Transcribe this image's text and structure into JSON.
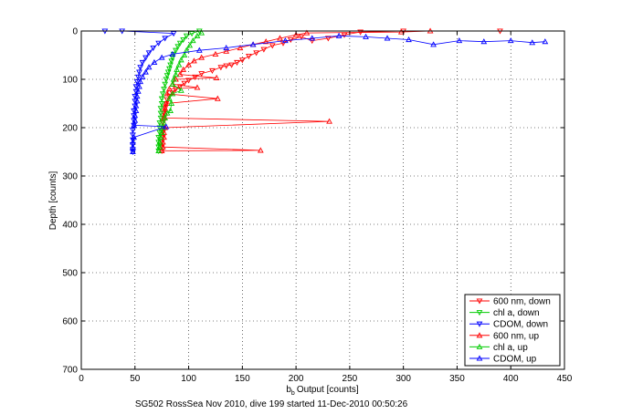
{
  "chart_data": {
    "type": "scatter",
    "title": "",
    "xlabel": "Output [counts]",
    "xlabel_prefix": "b",
    "xlabel_subscript": "b",
    "ylabel": "Depth [counts]",
    "caption": "SG502 RossSea Nov 2010, dive 199 started 11-Dec-2010 00:50:26",
    "xlim": [
      0,
      450
    ],
    "ylim": [
      0,
      700
    ],
    "y_reversed": true,
    "grid": true,
    "legend_position": "bottom-right",
    "x_ticks": [
      "0",
      "50",
      "100",
      "150",
      "200",
      "250",
      "300",
      "350",
      "400",
      "450"
    ],
    "y_ticks": [
      "0",
      "100",
      "200",
      "300",
      "400",
      "500",
      "600",
      "700"
    ],
    "series": [
      {
        "name": "600 nm, down",
        "color": "#ff0000",
        "marker": "triangle-down",
        "values": [
          [
            390,
            0
          ],
          [
            300,
            0
          ],
          [
            260,
            2
          ],
          [
            245,
            8
          ],
          [
            230,
            15
          ],
          [
            215,
            20
          ],
          [
            205,
            12
          ],
          [
            195,
            18
          ],
          [
            188,
            25
          ],
          [
            178,
            30
          ],
          [
            170,
            38
          ],
          [
            163,
            45
          ],
          [
            156,
            52
          ],
          [
            150,
            60
          ],
          [
            145,
            65
          ],
          [
            140,
            70
          ],
          [
            135,
            72
          ],
          [
            130,
            75
          ],
          [
            122,
            82
          ],
          [
            112,
            88
          ],
          [
            106,
            95
          ],
          [
            100,
            102
          ],
          [
            96,
            108
          ],
          [
            92,
            115
          ],
          [
            88,
            120
          ],
          [
            85,
            128
          ],
          [
            82,
            135
          ],
          [
            80,
            142
          ],
          [
            79,
            150
          ],
          [
            78,
            160
          ],
          [
            77,
            170
          ],
          [
            77,
            180
          ],
          [
            76,
            190
          ],
          [
            76,
            200
          ],
          [
            76,
            210
          ],
          [
            76,
            220
          ],
          [
            75,
            230
          ],
          [
            75,
            240
          ],
          [
            75,
            248
          ]
        ]
      },
      {
        "name": "chl a, down",
        "color": "#00cc00",
        "marker": "triangle-down",
        "values": [
          [
            110,
            0
          ],
          [
            103,
            5
          ],
          [
            98,
            10
          ],
          [
            95,
            18
          ],
          [
            92,
            25
          ],
          [
            90,
            32
          ],
          [
            88,
            40
          ],
          [
            86,
            48
          ],
          [
            85,
            55
          ],
          [
            84,
            62
          ],
          [
            83,
            70
          ],
          [
            82,
            78
          ],
          [
            81,
            85
          ],
          [
            80,
            92
          ],
          [
            79,
            100
          ],
          [
            78,
            110
          ],
          [
            77,
            120
          ],
          [
            76,
            130
          ],
          [
            75,
            140
          ],
          [
            75,
            150
          ],
          [
            74,
            160
          ],
          [
            74,
            170
          ],
          [
            74,
            180
          ],
          [
            73,
            190
          ],
          [
            73,
            200
          ],
          [
            73,
            210
          ],
          [
            72,
            220
          ],
          [
            72,
            230
          ],
          [
            72,
            240
          ],
          [
            72,
            248
          ]
        ]
      },
      {
        "name": "CDOM, down",
        "color": "#0000ff",
        "marker": "triangle-down",
        "values": [
          [
            22,
            0
          ],
          [
            38,
            0
          ],
          [
            86,
            5
          ],
          [
            78,
            15
          ],
          [
            72,
            25
          ],
          [
            67,
            35
          ],
          [
            63,
            45
          ],
          [
            60,
            55
          ],
          [
            57,
            65
          ],
          [
            55,
            75
          ],
          [
            54,
            85
          ],
          [
            53,
            95
          ],
          [
            52,
            105
          ],
          [
            51,
            115
          ],
          [
            51,
            125
          ],
          [
            50,
            135
          ],
          [
            50,
            145
          ],
          [
            50,
            155
          ],
          [
            49,
            165
          ],
          [
            49,
            175
          ],
          [
            49,
            185
          ],
          [
            49,
            195
          ],
          [
            48,
            205
          ],
          [
            48,
            215
          ],
          [
            48,
            225
          ],
          [
            48,
            235
          ],
          [
            48,
            245
          ],
          [
            48,
            250
          ]
        ]
      },
      {
        "name": "600 nm, up",
        "color": "#ff0000",
        "marker": "triangle-up",
        "values": [
          [
            75,
            248
          ],
          [
            167,
            247
          ],
          [
            76,
            240
          ],
          [
            76,
            230
          ],
          [
            77,
            220
          ],
          [
            77,
            210
          ],
          [
            78,
            200
          ],
          [
            231,
            187
          ],
          [
            77,
            180
          ],
          [
            78,
            170
          ],
          [
            78,
            160
          ],
          [
            79,
            150
          ],
          [
            127,
            140
          ],
          [
            80,
            130
          ],
          [
            82,
            120
          ],
          [
            108,
            117
          ],
          [
            85,
            110
          ],
          [
            88,
            100
          ],
          [
            126,
            97
          ],
          [
            92,
            90
          ],
          [
            95,
            80
          ],
          [
            100,
            70
          ],
          [
            105,
            62
          ],
          [
            112,
            55
          ],
          [
            125,
            48
          ],
          [
            135,
            42
          ],
          [
            148,
            35
          ],
          [
            160,
            28
          ],
          [
            172,
            22
          ],
          [
            185,
            15
          ],
          [
            200,
            8
          ],
          [
            210,
            4
          ],
          [
            298,
            2
          ],
          [
            325,
            0
          ]
        ]
      },
      {
        "name": "chl a, up",
        "color": "#00cc00",
        "marker": "triangle-up",
        "values": [
          [
            72,
            248
          ],
          [
            73,
            240
          ],
          [
            73,
            230
          ],
          [
            74,
            220
          ],
          [
            75,
            210
          ],
          [
            76,
            200
          ],
          [
            77,
            190
          ],
          [
            78,
            180
          ],
          [
            80,
            170
          ],
          [
            83,
            165
          ],
          [
            84,
            150
          ],
          [
            82,
            140
          ],
          [
            85,
            130
          ],
          [
            93,
            123
          ],
          [
            85,
            110
          ],
          [
            86,
            100
          ],
          [
            88,
            90
          ],
          [
            89,
            80
          ],
          [
            91,
            70
          ],
          [
            93,
            60
          ],
          [
            96,
            50
          ],
          [
            98,
            40
          ],
          [
            101,
            30
          ],
          [
            104,
            20
          ],
          [
            108,
            10
          ],
          [
            112,
            4
          ]
        ]
      },
      {
        "name": "CDOM, up",
        "color": "#0000ff",
        "marker": "triangle-up",
        "values": [
          [
            48,
            250
          ],
          [
            48,
            240
          ],
          [
            48,
            230
          ],
          [
            49,
            220
          ],
          [
            79,
            198
          ],
          [
            49,
            195
          ],
          [
            50,
            185
          ],
          [
            50,
            175
          ],
          [
            51,
            165
          ],
          [
            51,
            155
          ],
          [
            52,
            145
          ],
          [
            52,
            135
          ],
          [
            53,
            125
          ],
          [
            54,
            115
          ],
          [
            55,
            105
          ],
          [
            57,
            95
          ],
          [
            60,
            85
          ],
          [
            63,
            75
          ],
          [
            68,
            65
          ],
          [
            75,
            55
          ],
          [
            85,
            48
          ],
          [
            110,
            40
          ],
          [
            135,
            35
          ],
          [
            160,
            28
          ],
          [
            190,
            20
          ],
          [
            215,
            15
          ],
          [
            240,
            10
          ],
          [
            265,
            12
          ],
          [
            285,
            15
          ],
          [
            305,
            18
          ],
          [
            328,
            28
          ],
          [
            352,
            20
          ],
          [
            375,
            22
          ],
          [
            400,
            20
          ],
          [
            420,
            24
          ],
          [
            432,
            22
          ]
        ]
      }
    ]
  }
}
